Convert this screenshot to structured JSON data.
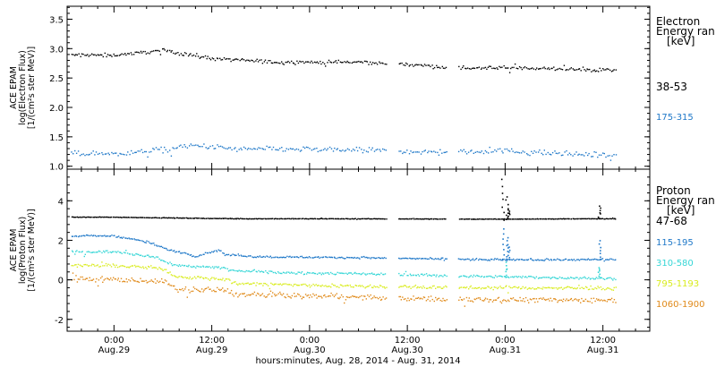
{
  "chart_data": [
    {
      "type": "scatter",
      "title": "",
      "ylabel": [
        "ACE EPAM",
        "log(Electron Flux)",
        "[1/(cm²s ster MeV)]"
      ],
      "ylim": [
        0.95,
        3.72
      ],
      "yticks": [
        1.0,
        1.5,
        2.0,
        2.5,
        3.0,
        3.5
      ],
      "ytick_labels": [
        "1.0",
        "1.5",
        "2.0",
        "2.5",
        "3.0",
        "3.5"
      ],
      "legend": {
        "title": [
          "Electron",
          "Energy ran",
          "[keV]"
        ],
        "placement": "right"
      },
      "series": [
        {
          "name": "38-53",
          "color": "#000000",
          "trend": [
            [
              0,
              2.9
            ],
            [
              12,
              2.98
            ],
            [
              24,
              2.84
            ],
            [
              40,
              2.78
            ],
            [
              60,
              2.78
            ],
            [
              72,
              2.74
            ],
            [
              85,
              2.68
            ],
            [
              100,
              2.68
            ],
            [
              110,
              2.66
            ],
            [
              120,
              2.64
            ]
          ],
          "gaps": [
            [
              66.8,
              69.7
            ],
            [
              81.6,
              84.4
            ]
          ]
        },
        {
          "name": "175-315",
          "color": "#1f78c8",
          "trend": [
            [
              0,
              1.22
            ],
            [
              10,
              1.28
            ],
            [
              20,
              1.36
            ],
            [
              30,
              1.3
            ],
            [
              45,
              1.3
            ],
            [
              60,
              1.28
            ],
            [
              80,
              1.25
            ],
            [
              95,
              1.27
            ],
            [
              110,
              1.22
            ],
            [
              120,
              1.2
            ]
          ],
          "gaps": [
            [
              66.8,
              69.7
            ],
            [
              81.6,
              84.4
            ]
          ]
        }
      ]
    },
    {
      "type": "scatter",
      "title": "",
      "ylabel": [
        "ACE EPAM",
        "log(Proton Flux)",
        "[1/(cm²s ster MeV)]"
      ],
      "ylim": [
        -2.6,
        5.6
      ],
      "yticks": [
        -2,
        0,
        2,
        4
      ],
      "ytick_labels": [
        "-2",
        "0",
        "2",
        "4"
      ],
      "legend": {
        "title": [
          "Proton",
          "Energy ran",
          "[keV]"
        ],
        "placement": "right"
      },
      "series": [
        {
          "name": "47-68",
          "color": "#000000",
          "trend": [
            [
              0,
              3.2
            ],
            [
              30,
              3.12
            ],
            [
              60,
              3.12
            ],
            [
              90,
              3.1
            ],
            [
              120,
              3.12
            ]
          ],
          "spikes": [
            [
              95.3,
              5.1
            ],
            [
              96.3,
              4.2
            ],
            [
              96.7,
              3.6
            ],
            [
              119,
              3.8
            ]
          ],
          "gaps": [
            [
              66.8,
              69.7
            ],
            [
              81.6,
              84.4
            ]
          ]
        },
        {
          "name": "115-195",
          "color": "#1f78c8",
          "trend": [
            [
              0,
              2.25
            ],
            [
              8,
              1.95
            ],
            [
              14,
              1.5
            ],
            [
              18,
              1.35
            ],
            [
              20,
              1.2
            ],
            [
              22,
              1.35
            ],
            [
              26,
              1.55
            ],
            [
              27,
              1.3
            ],
            [
              35,
              1.2
            ],
            [
              60,
              1.15
            ],
            [
              90,
              1.05
            ],
            [
              120,
              1.05
            ]
          ],
          "spikes": [
            [
              95.3,
              2.6
            ],
            [
              96.3,
              2.2
            ],
            [
              96.8,
              1.8
            ],
            [
              119,
              2.0
            ]
          ],
          "gaps": [
            [
              66.8,
              69.7
            ],
            [
              81.6,
              84.4
            ]
          ]
        },
        {
          "name": "310-580",
          "color": "#35d6d6",
          "trend": [
            [
              0,
              1.45
            ],
            [
              10,
              1.2
            ],
            [
              14,
              0.8
            ],
            [
              20,
              0.7
            ],
            [
              27,
              0.65
            ],
            [
              28,
              0.5
            ],
            [
              40,
              0.4
            ],
            [
              70,
              0.3
            ],
            [
              90,
              0.2
            ],
            [
              120,
              0.1
            ]
          ],
          "spikes": [
            [
              96.3,
              0.9
            ],
            [
              119,
              0.7
            ]
          ],
          "gaps": [
            [
              66.8,
              69.7
            ],
            [
              81.6,
              84.4
            ]
          ]
        },
        {
          "name": "795-1193",
          "color": "#d9ec1e",
          "trend": [
            [
              0,
              0.75
            ],
            [
              12,
              0.6
            ],
            [
              15,
              0.2
            ],
            [
              28,
              0.05
            ],
            [
              29,
              -0.15
            ],
            [
              50,
              -0.25
            ],
            [
              80,
              -0.35
            ],
            [
              120,
              -0.4
            ]
          ],
          "gaps": [
            [
              66.8,
              69.7
            ],
            [
              81.6,
              84.4
            ]
          ]
        },
        {
          "name": "1060-1900",
          "color": "#e08a1a",
          "trend": [
            [
              0,
              0.05
            ],
            [
              12,
              -0.05
            ],
            [
              15,
              -0.45
            ],
            [
              28,
              -0.5
            ],
            [
              29,
              -0.7
            ],
            [
              50,
              -0.8
            ],
            [
              80,
              -0.95
            ],
            [
              120,
              -1.0
            ]
          ],
          "gaps": [
            [
              66.8,
              69.7
            ],
            [
              81.6,
              84.4
            ]
          ]
        }
      ]
    }
  ],
  "x_axis": {
    "xlabel": "hours:minutes, Aug. 28, 2014 - Aug. 31, 2014",
    "xlim_hours": [
      -11.5,
      131.5
    ],
    "major_ticks": [
      {
        "hours": 0,
        "time": "0:00",
        "date": "Aug.29"
      },
      {
        "hours": 24,
        "time": "12:00",
        "date": "Aug.29"
      },
      {
        "hours": 48,
        "time": "0:00",
        "date": "Aug.30"
      },
      {
        "hours": 72,
        "time": "12:00",
        "date": "Aug.30"
      },
      {
        "hours": 96,
        "time": "0:00",
        "date": "Aug.31"
      },
      {
        "hours": 120,
        "time": "12:00",
        "date": "Aug.31"
      }
    ],
    "minor_tick_step_hours": 4,
    "data_range_hours": [
      -10.5,
      123
    ]
  }
}
